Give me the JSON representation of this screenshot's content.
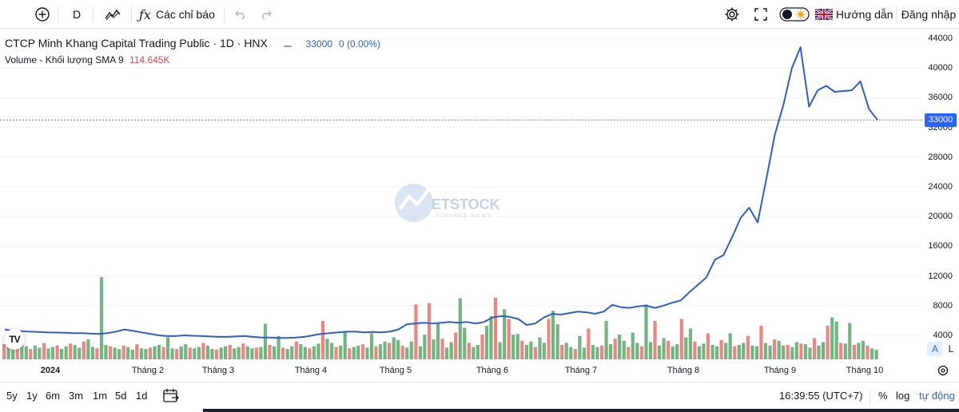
{
  "toolbar": {
    "interval": "D",
    "indicators_label": "Các chỉ báo",
    "guide_label": "Hướng dẫn",
    "login_label": "Đăng nhập"
  },
  "legend": {
    "symbol_title": "CTCP Minh Khang Capital Trading Public · 1D · HNX",
    "last_price": "33000",
    "change": "0 (0.00%)",
    "volume_label": "Volume - Khối lượng SMA 9",
    "volume_value": "114.645K"
  },
  "watermark": {
    "text": "ETSTOCK",
    "subtext": "FINANCE NEWS"
  },
  "colors": {
    "line": "#2f5ec4",
    "up": "#5aa86a",
    "down": "#eb6f6f",
    "accent": "#2962ff"
  },
  "chart_data": {
    "type": "line",
    "price_axis_ticks": [
      "44000",
      "40000",
      "36000",
      "32000",
      "28000",
      "24000",
      "20000",
      "16000",
      "12000",
      "8000",
      "4000"
    ],
    "ylim": [
      0,
      46000
    ],
    "last_value_label": "33000",
    "x_ticks": [
      "2024",
      "Tháng 2",
      "Tháng 3",
      "Tháng 4",
      "Tháng 5",
      "Tháng 6",
      "Tháng 7",
      "Tháng 8",
      "Tháng 9",
      "Tháng 10"
    ],
    "series": [
      {
        "kind": "close",
        "values": [
          4800,
          4600,
          4550,
          4500,
          4450,
          4400,
          4380,
          4350,
          4300,
          4300,
          4250,
          4200,
          4300,
          4500,
          4800,
          4600,
          4400,
          4200,
          4000,
          3900,
          3900,
          4000,
          3950,
          3900,
          3850,
          3800,
          3800,
          3850,
          3900,
          3800,
          3700,
          3700,
          3650,
          3650,
          3700,
          3800,
          4000,
          4200,
          4300,
          4400,
          4500,
          4500,
          4400,
          4450,
          4400,
          4500,
          4800,
          5500,
          5600,
          5700,
          5600,
          5700,
          5800,
          5700,
          5800,
          5600,
          5800,
          6400,
          6600,
          6500,
          6200,
          5400,
          5600,
          6400,
          6900,
          6800,
          7000,
          7200,
          7100,
          6900,
          7200,
          8100,
          7800,
          7700,
          7900,
          8000,
          7700,
          8000,
          8400,
          8700,
          9800,
          10800,
          11800,
          14200,
          14800,
          17200,
          19800,
          21200,
          19200,
          25000,
          31000,
          35000,
          40000,
          42800,
          34800,
          37000,
          37600,
          36800,
          36900,
          37000,
          38200,
          34500,
          33000
        ]
      },
      {
        "kind": "volume",
        "values": [
          2200,
          2500,
          1800,
          2100,
          3200,
          1900,
          1500,
          2000,
          1700,
          2400,
          1600,
          1800,
          2000,
          1500,
          1900,
          2300,
          2100,
          1700,
          2600,
          2900,
          1800,
          1600,
          12000,
          2100,
          1900,
          1700,
          1500,
          2000,
          1800,
          1400,
          2200,
          1600,
          1500,
          1700,
          1900,
          2100,
          1800,
          3200,
          1600,
          1500,
          1900,
          2200,
          1700,
          1600,
          1800,
          2400,
          2000,
          1500,
          1400,
          1700,
          1900,
          2100,
          1600,
          1800,
          2300,
          1900,
          1600,
          1700,
          1800,
          5200,
          2100,
          1900,
          3400,
          1700,
          1500,
          1900,
          2600,
          2200,
          1800,
          1600,
          1900,
          2300,
          5600,
          3000,
          2400,
          1800,
          2000,
          4100,
          1600,
          1800,
          2000,
          2200,
          1700,
          3800,
          1900,
          2200,
          2600,
          2400,
          3200,
          2800,
          2000,
          1700,
          2600,
          8000,
          1900,
          3600,
          8200,
          2900,
          5200,
          3000,
          1700,
          2500,
          3900,
          8900,
          4600,
          2400,
          1800,
          2100,
          3600,
          4900,
          6300,
          9000,
          2500,
          7300,
          5900,
          3600,
          3700,
          2700,
          2100,
          2600,
          1800,
          3200,
          2400,
          5900,
          7100,
          5100,
          2100,
          2400,
          1800,
          1500,
          3400,
          1700,
          4500,
          2100,
          1800,
          2000,
          5600,
          2200,
          3000,
          3600,
          2700,
          1800,
          3900,
          2400,
          1900,
          8000,
          2500,
          5600,
          2000,
          3100,
          2700,
          1900,
          2200,
          5900,
          3200,
          4500,
          2600,
          1900,
          2300,
          3800,
          2100,
          1900,
          2800,
          2400,
          3800,
          1900,
          2100,
          2400,
          3400,
          2000,
          1900,
          4900,
          2400,
          2000,
          2900,
          2700,
          2000,
          2100,
          1800,
          2500,
          2300,
          2200,
          1700,
          3100,
          2000,
          2500,
          4900,
          6100,
          5500,
          2400,
          2300,
          5300,
          2100,
          2400,
          2700,
          2000,
          1600,
          1400
        ]
      }
    ]
  },
  "time_ranges": [
    "5y",
    "1y",
    "6m",
    "3m",
    "1m",
    "5d",
    "1d"
  ],
  "status": {
    "clock": "16:39:55 (UTC+7)",
    "percent_label": "%",
    "log_label": "log",
    "auto_label": "tự động"
  },
  "scale_buttons": {
    "auto": "A",
    "log": "L"
  },
  "logo": {
    "text": "TV"
  }
}
